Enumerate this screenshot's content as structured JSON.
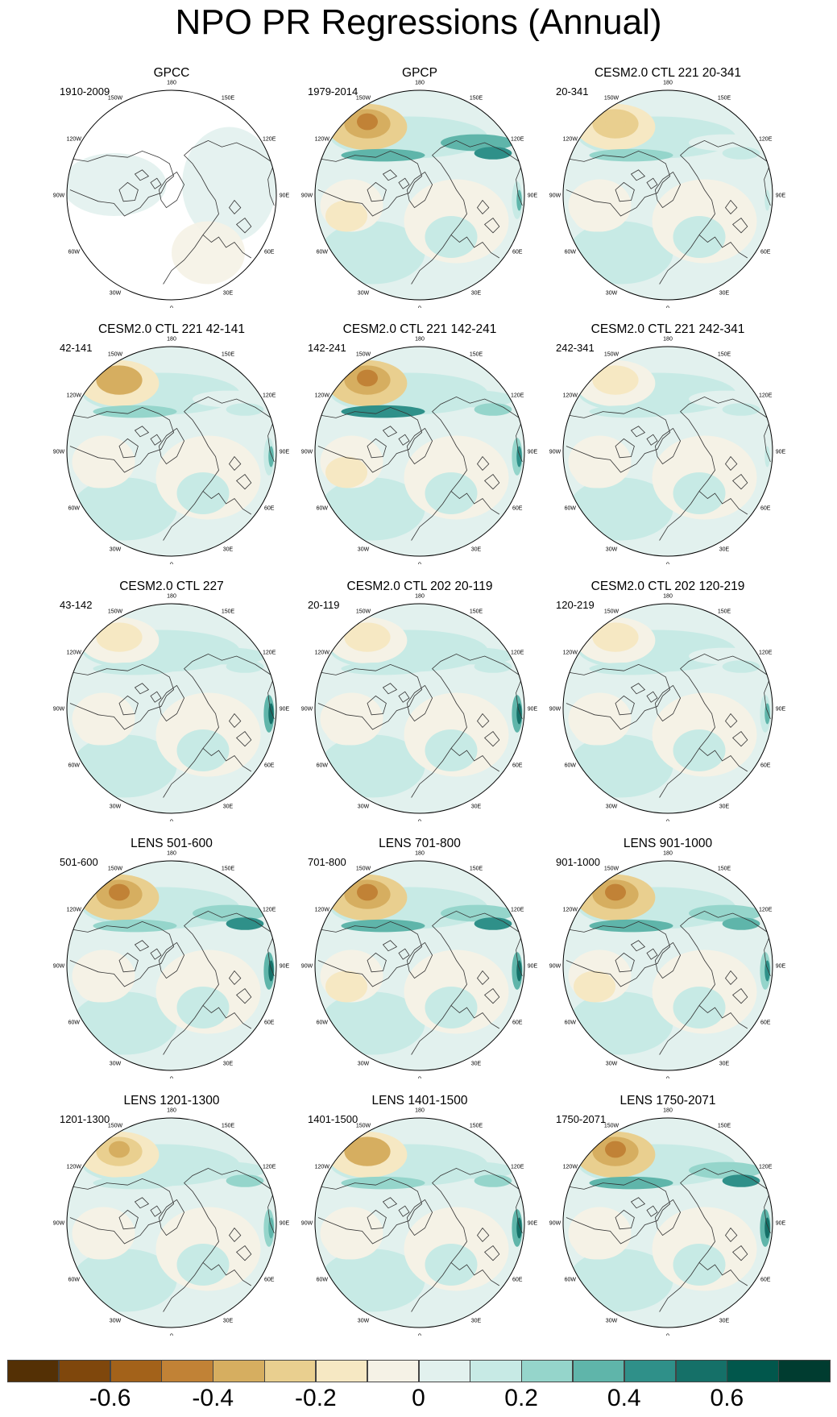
{
  "title": "NPO PR Regressions (Annual)",
  "longitude_labels": [
    "180",
    "150E",
    "120E",
    "90E",
    "60E",
    "30E",
    "0",
    "30W",
    "60W",
    "90W",
    "120W",
    "150W"
  ],
  "panels": [
    {
      "title": "GPCC",
      "period": "1910-2009",
      "anomaly": {
        "pac_neg": 0.0,
        "pac_pos": 0.0,
        "india_pos": 0.0,
        "eur_pos": 0.05,
        "asia_pos": 0.0,
        "atl_neg": 0.0,
        "missing_data": true
      }
    },
    {
      "title": "GPCP",
      "period": "1979-2014",
      "anomaly": {
        "pac_neg": 0.45,
        "pac_pos": 0.3,
        "india_pos": 0.3,
        "eur_pos": 0.1,
        "asia_pos": 0.45,
        "atl_neg": 0.2,
        "missing_data": false
      }
    },
    {
      "title": "CESM2.0 CTL 221 20-341",
      "period": "20-341",
      "anomaly": {
        "pac_neg": 0.3,
        "pac_pos": 0.2,
        "india_pos": 0.1,
        "eur_pos": 0.1,
        "asia_pos": 0.1,
        "atl_neg": 0.1,
        "missing_data": false
      }
    },
    {
      "title": "CESM2.0 CTL 221 42-141",
      "period": "42-141",
      "anomaly": {
        "pac_neg": 0.4,
        "pac_pos": 0.2,
        "india_pos": 0.3,
        "eur_pos": 0.15,
        "asia_pos": 0.1,
        "atl_neg": 0.1,
        "missing_data": false
      }
    },
    {
      "title": "CESM2.0 CTL 221 142-241",
      "period": "142-241",
      "anomaly": {
        "pac_neg": 0.45,
        "pac_pos": 0.4,
        "india_pos": 0.45,
        "eur_pos": 0.1,
        "asia_pos": 0.2,
        "atl_neg": 0.2,
        "missing_data": false
      }
    },
    {
      "title": "CESM2.0 CTL 221 242-341",
      "period": "242-341",
      "anomaly": {
        "pac_neg": 0.15,
        "pac_pos": 0.1,
        "india_pos": 0.15,
        "eur_pos": 0.1,
        "asia_pos": 0.1,
        "atl_neg": 0.15,
        "missing_data": false
      }
    },
    {
      "title": "CESM2.0 CTL 227",
      "period": "43-142",
      "anomaly": {
        "pac_neg": 0.15,
        "pac_pos": 0.1,
        "india_pos": 0.5,
        "eur_pos": 0.1,
        "asia_pos": 0.15,
        "atl_neg": 0.1,
        "missing_data": false
      }
    },
    {
      "title": "CESM2.0 CTL 202 20-119",
      "period": "20-119",
      "anomaly": {
        "pac_neg": 0.2,
        "pac_pos": 0.1,
        "india_pos": 0.5,
        "eur_pos": 0.1,
        "asia_pos": 0.15,
        "atl_neg": 0.1,
        "missing_data": false
      }
    },
    {
      "title": "CESM2.0 CTL 202 120-219",
      "period": "120-219",
      "anomaly": {
        "pac_neg": 0.15,
        "pac_pos": 0.1,
        "india_pos": 0.3,
        "eur_pos": 0.1,
        "asia_pos": 0.1,
        "atl_neg": 0.1,
        "missing_data": false
      }
    },
    {
      "title": "LENS 501-600",
      "period": "501-600",
      "anomaly": {
        "pac_neg": 0.45,
        "pac_pos": 0.2,
        "india_pos": 0.55,
        "eur_pos": 0.1,
        "asia_pos": 0.4,
        "atl_neg": 0.1,
        "missing_data": false
      }
    },
    {
      "title": "LENS 701-800",
      "period": "701-800",
      "anomaly": {
        "pac_neg": 0.5,
        "pac_pos": 0.3,
        "india_pos": 0.6,
        "eur_pos": 0.1,
        "asia_pos": 0.4,
        "atl_neg": 0.25,
        "missing_data": false
      }
    },
    {
      "title": "LENS 901-1000",
      "period": "901-1000",
      "anomaly": {
        "pac_neg": 0.45,
        "pac_pos": 0.3,
        "india_pos": 0.45,
        "eur_pos": 0.1,
        "asia_pos": 0.35,
        "atl_neg": 0.2,
        "missing_data": false
      }
    },
    {
      "title": "LENS 1201-1300",
      "period": "1201-1300",
      "anomaly": {
        "pac_neg": 0.35,
        "pac_pos": 0.15,
        "india_pos": 0.35,
        "eur_pos": 0.1,
        "asia_pos": 0.2,
        "atl_neg": 0.1,
        "missing_data": false
      }
    },
    {
      "title": "LENS 1401-1500",
      "period": "1401-1500",
      "anomaly": {
        "pac_neg": 0.4,
        "pac_pos": 0.2,
        "india_pos": 0.6,
        "eur_pos": 0.1,
        "asia_pos": 0.25,
        "atl_neg": 0.1,
        "missing_data": false
      }
    },
    {
      "title": "LENS 1750-2071",
      "period": "1750-2071",
      "anomaly": {
        "pac_neg": 0.5,
        "pac_pos": 0.3,
        "india_pos": 0.6,
        "eur_pos": 0.15,
        "asia_pos": 0.4,
        "atl_neg": 0.15,
        "missing_data": false
      }
    }
  ],
  "colorbar": {
    "colors": [
      "#543005",
      "#7f470c",
      "#a3621a",
      "#c18236",
      "#d6ae60",
      "#e9cf8f",
      "#f6e8c3",
      "#f5f2e6",
      "#e2f1ee",
      "#c7eae5",
      "#95d5cb",
      "#5fb5aa",
      "#2f9089",
      "#157068",
      "#01574c",
      "#003c30"
    ],
    "ticks": [
      "-0.6",
      "-0.4",
      "-0.2",
      "0",
      "0.2",
      "0.4",
      "0.6"
    ],
    "tick_values": [
      -0.6,
      -0.4,
      -0.2,
      0,
      0.2,
      0.4,
      0.6
    ],
    "range": [
      -0.8,
      0.8
    ]
  }
}
